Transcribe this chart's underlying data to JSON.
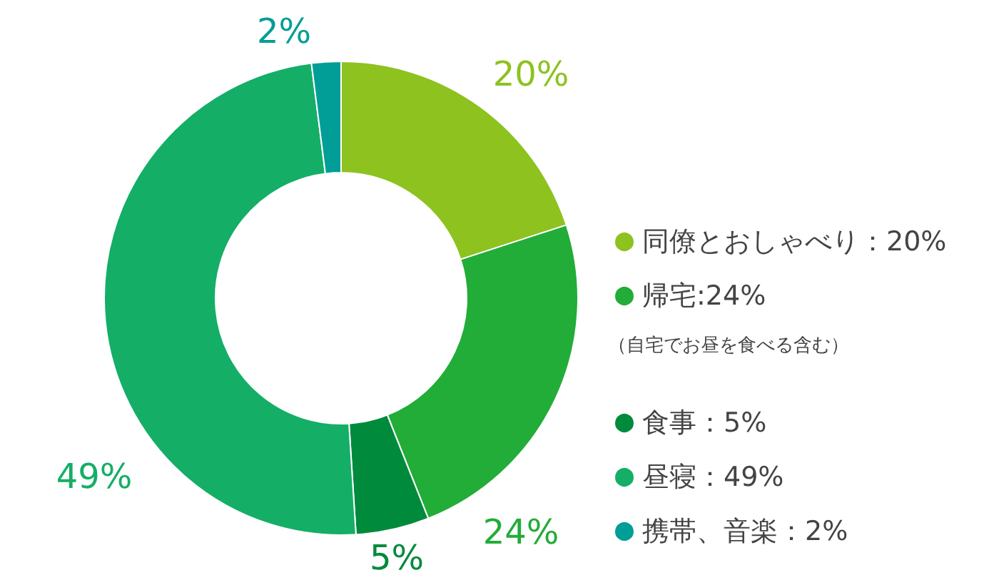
{
  "chart_data": {
    "type": "donut",
    "categories": [
      "同僚とおしゃべり：20%",
      "帰宅:24%",
      "食事：5%",
      "昼寝：49%",
      "携帯、音楽：2%"
    ],
    "values": [
      20,
      24,
      5,
      49,
      2
    ],
    "value_labels": [
      "20%",
      "24%",
      "5%",
      "49%",
      "2%"
    ],
    "colors": [
      "#8dc21f",
      "#22ac38",
      "#008a3c",
      "#14ae67",
      "#009e96"
    ],
    "legend": "right",
    "annotations": [
      "（自宅でお昼を食べる含む）"
    ]
  }
}
